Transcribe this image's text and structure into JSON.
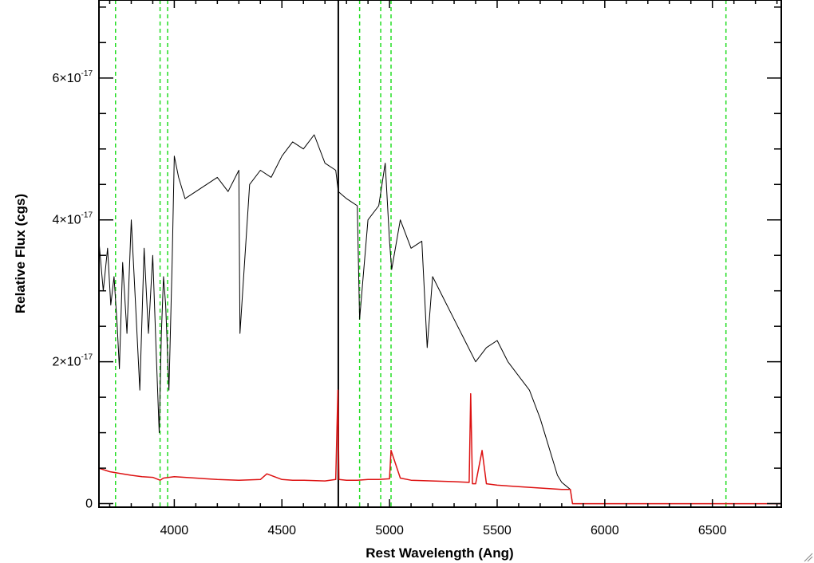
{
  "chart_data": {
    "type": "line",
    "title": "",
    "xlabel": "Rest Wavelength (Ang)",
    "ylabel": "Relative Flux (cgs)",
    "xlim": [
      3650,
      6820
    ],
    "ylim": [
      -0.05,
      7.1
    ],
    "y_unit_exponent": "-17",
    "x_ticks": [
      {
        "value": 4000,
        "label": "4000"
      },
      {
        "value": 4500,
        "label": "4500"
      },
      {
        "value": 5000,
        "label": "5000"
      },
      {
        "value": 5500,
        "label": "5500"
      },
      {
        "value": 6000,
        "label": "6000"
      },
      {
        "value": 6500,
        "label": "6500"
      }
    ],
    "y_ticks": [
      {
        "value": 0,
        "mantissa": "0",
        "exponent": ""
      },
      {
        "value": 2,
        "mantissa": "2×10",
        "exponent": "-17"
      },
      {
        "value": 4,
        "mantissa": "4×10",
        "exponent": "-17"
      },
      {
        "value": 6,
        "mantissa": "6×10",
        "exponent": "-17"
      }
    ],
    "grid": false,
    "legend": "none",
    "vertical_markers": {
      "color": "#22dd22",
      "style": "dashed",
      "x": [
        3727,
        3934,
        3969,
        4861,
        4959,
        5007,
        6563
      ]
    },
    "solid_marker": {
      "x": 4762,
      "color": "#000000"
    },
    "series": [
      {
        "color": "#000000",
        "x": [
          3650,
          3670,
          3690,
          3705,
          3720,
          3735,
          3745,
          3760,
          3780,
          3800,
          3820,
          3840,
          3860,
          3880,
          3900,
          3915,
          3930,
          3940,
          3950,
          3960,
          3975,
          3990,
          4000,
          4020,
          4050,
          4100,
          4150,
          4200,
          4250,
          4300,
          4305,
          4350,
          4400,
          4450,
          4500,
          4550,
          4600,
          4650,
          4700,
          4750,
          4762,
          4800,
          4850,
          4861,
          4900,
          4950,
          4980,
          5000,
          5010,
          5050,
          5100,
          5150,
          5175,
          5200,
          5250,
          5300,
          5350,
          5400,
          5450,
          5500,
          5550,
          5600,
          5650,
          5700,
          5750,
          5780,
          5800,
          5820,
          5840,
          5850,
          5900,
          6000,
          6100,
          6200,
          6300,
          6400,
          6500,
          6600,
          6700,
          6820
        ],
        "y": [
          3.7,
          3.0,
          3.6,
          2.8,
          3.2,
          2.5,
          1.9,
          3.4,
          2.4,
          4.0,
          2.8,
          1.6,
          3.6,
          2.4,
          3.5,
          2.2,
          1.0,
          2.4,
          3.2,
          2.8,
          1.6,
          3.4,
          4.9,
          4.6,
          4.3,
          4.4,
          4.5,
          4.6,
          4.4,
          4.7,
          2.4,
          4.5,
          4.7,
          4.6,
          4.9,
          5.1,
          5.0,
          5.2,
          4.8,
          4.7,
          4.4,
          4.3,
          4.2,
          2.6,
          4.0,
          4.2,
          4.8,
          3.7,
          3.3,
          4.0,
          3.6,
          3.7,
          2.2,
          3.2,
          2.9,
          2.6,
          2.3,
          2.0,
          2.2,
          2.3,
          2.0,
          1.8,
          1.6,
          1.2,
          0.7,
          0.4,
          0.3,
          0.25,
          0.2,
          0.0,
          0.0,
          0.0,
          0.0,
          0.0,
          0.0,
          0.0,
          0.0,
          0.0,
          0.0,
          0.0
        ]
      },
      {
        "color": "#dd1111",
        "x": [
          3650,
          3700,
          3760,
          3800,
          3850,
          3900,
          3934,
          3950,
          4000,
          4100,
          4200,
          4300,
          4400,
          4430,
          4500,
          4550,
          4600,
          4700,
          4750,
          4760,
          4765,
          4800,
          4850,
          4900,
          4950,
          5000,
          5007,
          5050,
          5100,
          5200,
          5300,
          5370,
          5377,
          5385,
          5400,
          5430,
          5450,
          5500,
          5600,
          5700,
          5800,
          5840,
          5850,
          5900,
          6000,
          6200,
          6400,
          6600,
          6820
        ],
        "y": [
          0.5,
          0.45,
          0.42,
          0.4,
          0.38,
          0.37,
          0.33,
          0.36,
          0.38,
          0.36,
          0.34,
          0.33,
          0.34,
          0.42,
          0.34,
          0.33,
          0.33,
          0.32,
          0.34,
          1.6,
          0.34,
          0.33,
          0.33,
          0.34,
          0.34,
          0.35,
          0.75,
          0.36,
          0.33,
          0.32,
          0.31,
          0.3,
          1.55,
          0.28,
          0.28,
          0.75,
          0.28,
          0.26,
          0.24,
          0.22,
          0.2,
          0.2,
          0.0,
          0.0,
          0.0,
          0.0,
          0.0,
          0.0,
          0.0
        ]
      }
    ]
  }
}
